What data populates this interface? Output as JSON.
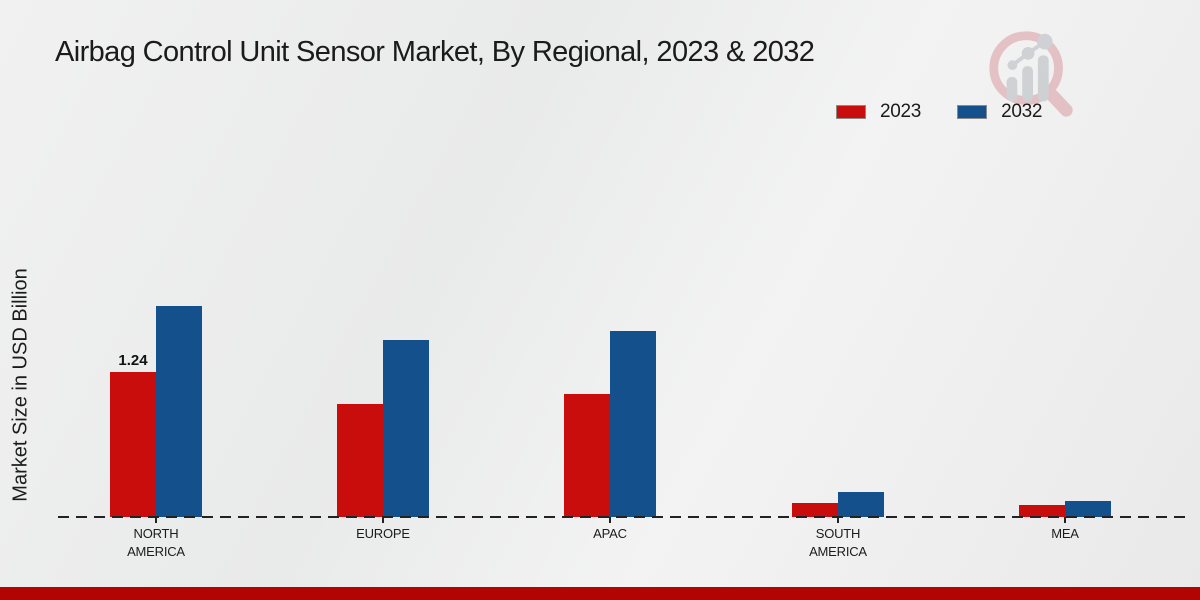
{
  "title": "Airbag Control Unit Sensor Market, By Regional, 2023 & 2032",
  "y_axis_label": "Market Size in USD Billion",
  "legend": {
    "items": [
      {
        "label": "2023",
        "color": "#c90d0d"
      },
      {
        "label": "2032",
        "color": "#14518c"
      }
    ]
  },
  "logo": {
    "name": "market-research-magnifier-logo",
    "ring_color": "#d89aa0",
    "bars_color": "#b4b8be"
  },
  "footer": {
    "strip_color": "#b30404"
  },
  "chart_data": {
    "type": "bar",
    "categories": [
      "NORTH AMERICA",
      "EUROPE",
      "APAC",
      "SOUTH AMERICA",
      "MEA"
    ],
    "category_label_lines": [
      [
        "NORTH",
        "AMERICA"
      ],
      [
        "EUROPE"
      ],
      [
        "APAC"
      ],
      [
        "SOUTH",
        "AMERICA"
      ],
      [
        "MEA"
      ]
    ],
    "series": [
      {
        "name": "2023",
        "color": "#c90d0d",
        "values": [
          1.24,
          0.97,
          1.05,
          0.12,
          0.1
        ]
      },
      {
        "name": "2032",
        "color": "#14518c",
        "values": [
          1.8,
          1.51,
          1.59,
          0.21,
          0.14
        ]
      }
    ],
    "annotations": [
      {
        "series": "2023",
        "category": "NORTH AMERICA",
        "text": "1.24",
        "value": 1.24
      }
    ],
    "title": "Airbag Control Unit Sensor Market, By Regional, 2023 & 2032",
    "xlabel": "",
    "ylabel": "Market Size in USD Billion",
    "ylim": [
      0,
      2.0
    ],
    "grid": false,
    "baseline_style": "dashed",
    "legend_position": "top-right"
  }
}
